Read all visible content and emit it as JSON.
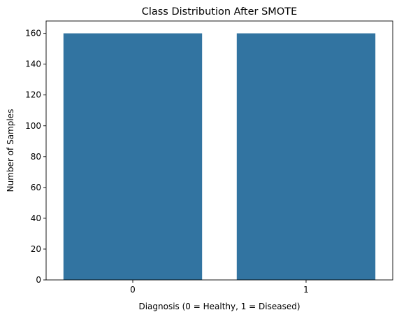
{
  "chart_data": {
    "type": "bar",
    "title": "Class Distribution After SMOTE",
    "xlabel": "Diagnosis (0 = Healthy, 1 = Diseased)",
    "ylabel": "Number of Samples",
    "categories": [
      "0",
      "1"
    ],
    "values": [
      160,
      160
    ],
    "ylim": [
      0,
      168
    ],
    "yticks": [
      0,
      20,
      40,
      60,
      80,
      100,
      120,
      140,
      160
    ],
    "bar_color": "#3274a1",
    "grid": false,
    "legend": false
  }
}
